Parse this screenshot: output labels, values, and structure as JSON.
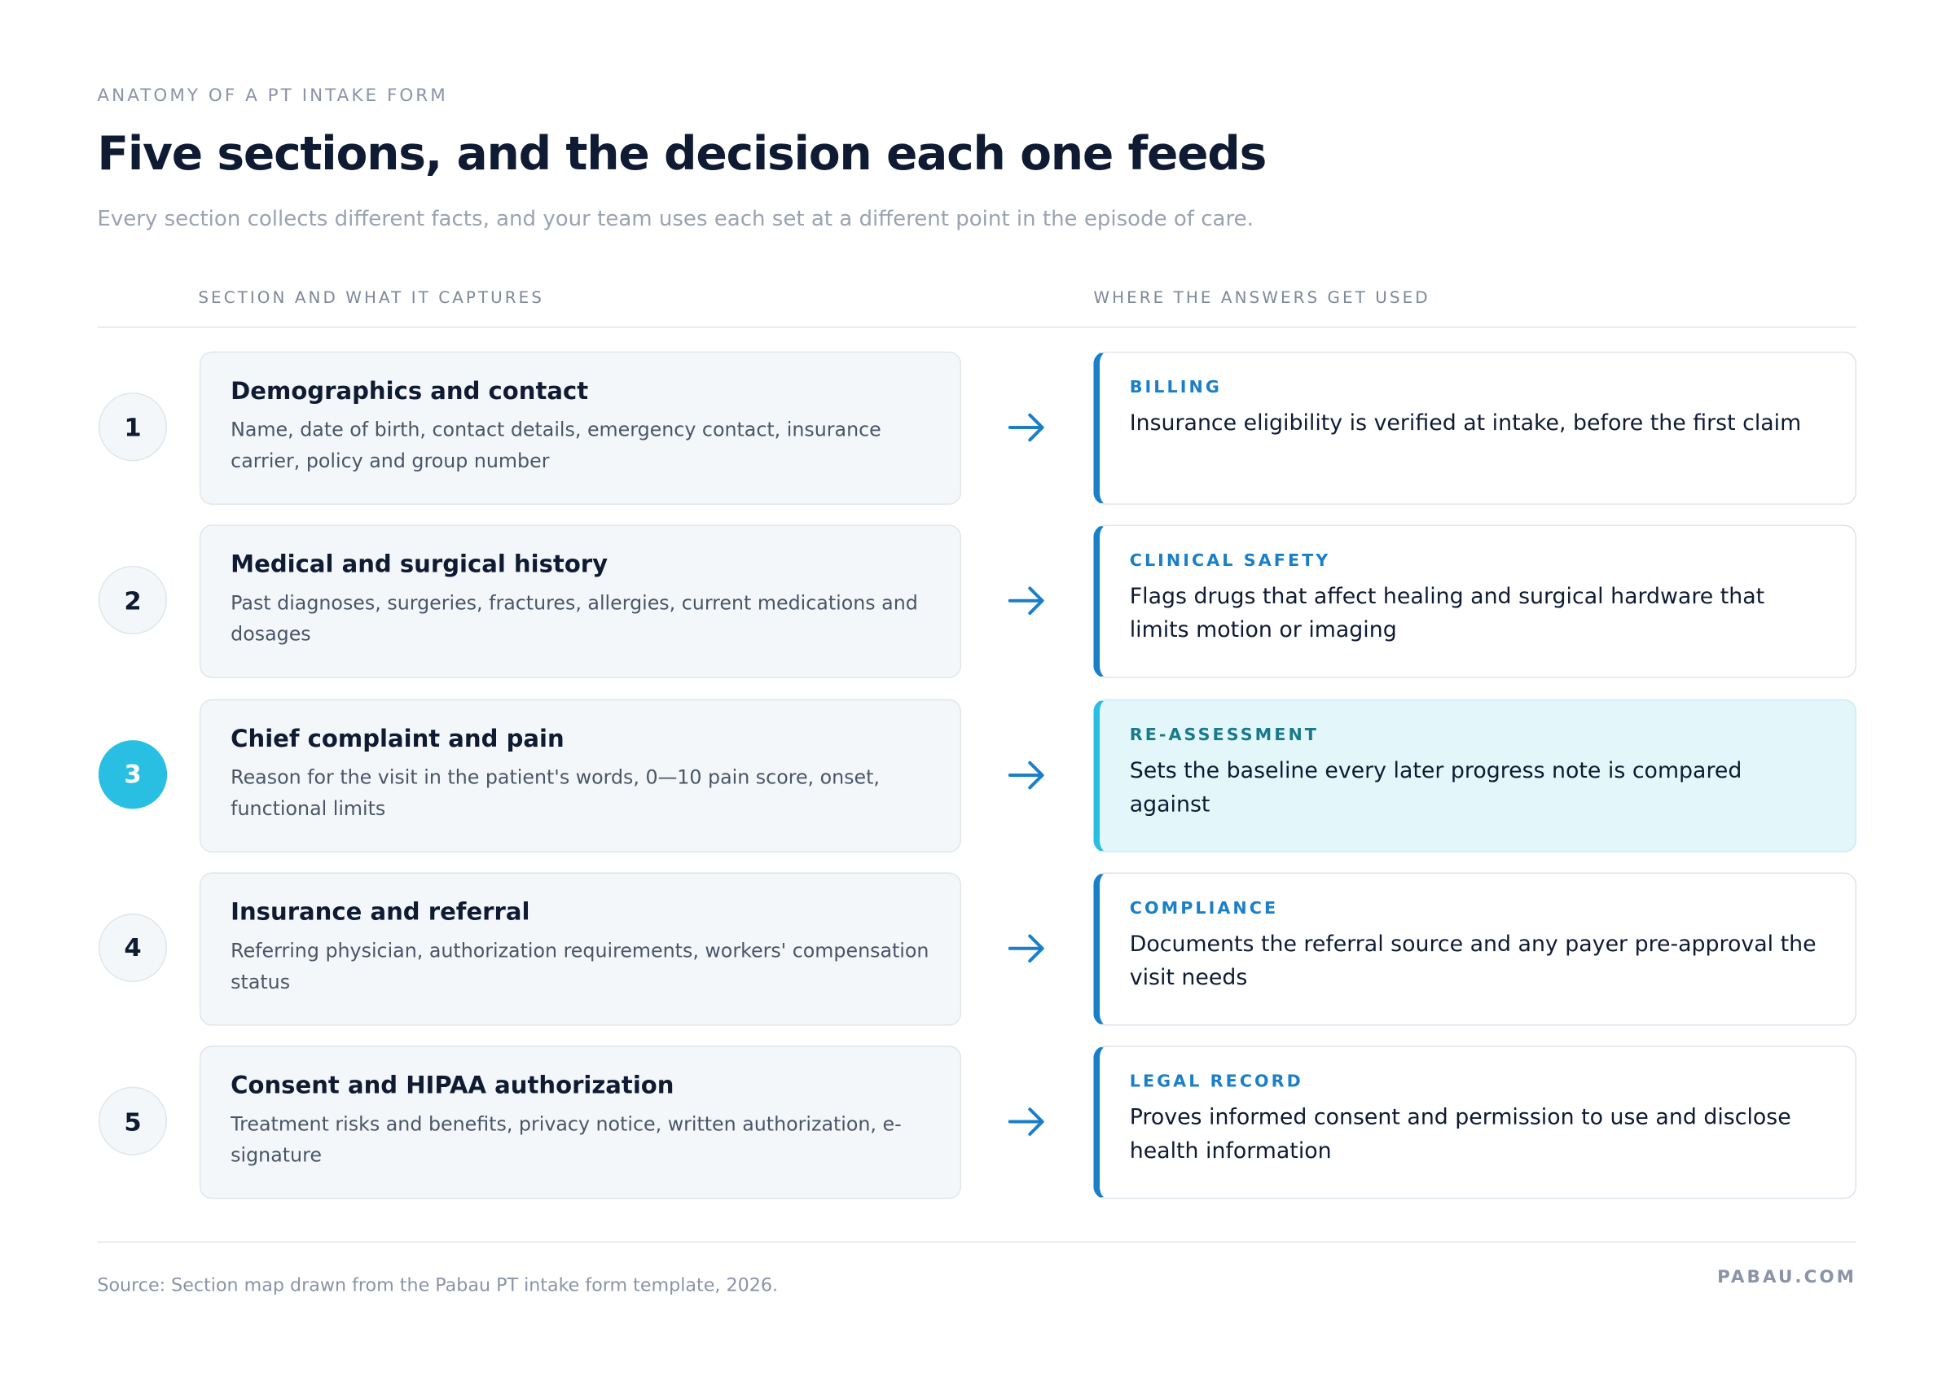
{
  "header": {
    "eyebrow": "ANATOMY OF A PT INTAKE FORM",
    "title": "Five sections, and the decision each one feeds",
    "subtitle": "Every section collects different facts, and your team uses each set at a different point in the episode of care."
  },
  "columns": {
    "left": "SECTION AND WHAT IT CAPTURES",
    "right": "WHERE THE ANSWERS GET USED"
  },
  "rows": [
    {
      "number": "1",
      "title": "Demographics and contact",
      "description": "Name, date of birth, contact details, emergency contact, insurance carrier, policy and group number",
      "use_label": "BILLING",
      "use_text": "Insurance eligibility is verified at intake, before the first claim"
    },
    {
      "number": "2",
      "title": "Medical and surgical history",
      "description": "Past diagnoses, surgeries, fractures, allergies, current medications and dosages",
      "use_label": "CLINICAL SAFETY",
      "use_text": "Flags drugs that affect healing and surgical hardware that limits motion or imaging"
    },
    {
      "number": "3",
      "title": "Chief complaint and pain",
      "description": "Reason for the visit in the patient's words, 0—10 pain score, onset, functional limits",
      "use_label": "RE-ASSESSMENT",
      "use_text": "Sets the baseline every later progress note is compared against"
    },
    {
      "number": "4",
      "title": "Insurance and referral",
      "description": "Referring physician, authorization requirements, workers' compensation status",
      "use_label": "COMPLIANCE",
      "use_text": "Documents the referral source and any payer pre-approval the visit needs"
    },
    {
      "number": "5",
      "title": "Consent and HIPAA authorization",
      "description": "Treatment risks and benefits, privacy notice, written authorization, e-signature",
      "use_label": "LEGAL RECORD",
      "use_text": "Proves informed consent and permission to use and disclose health information"
    }
  ],
  "footer": {
    "source": "Source: Section map drawn from the Pabau PT intake form template, 2026.",
    "brand": "PABAU.COM"
  }
}
